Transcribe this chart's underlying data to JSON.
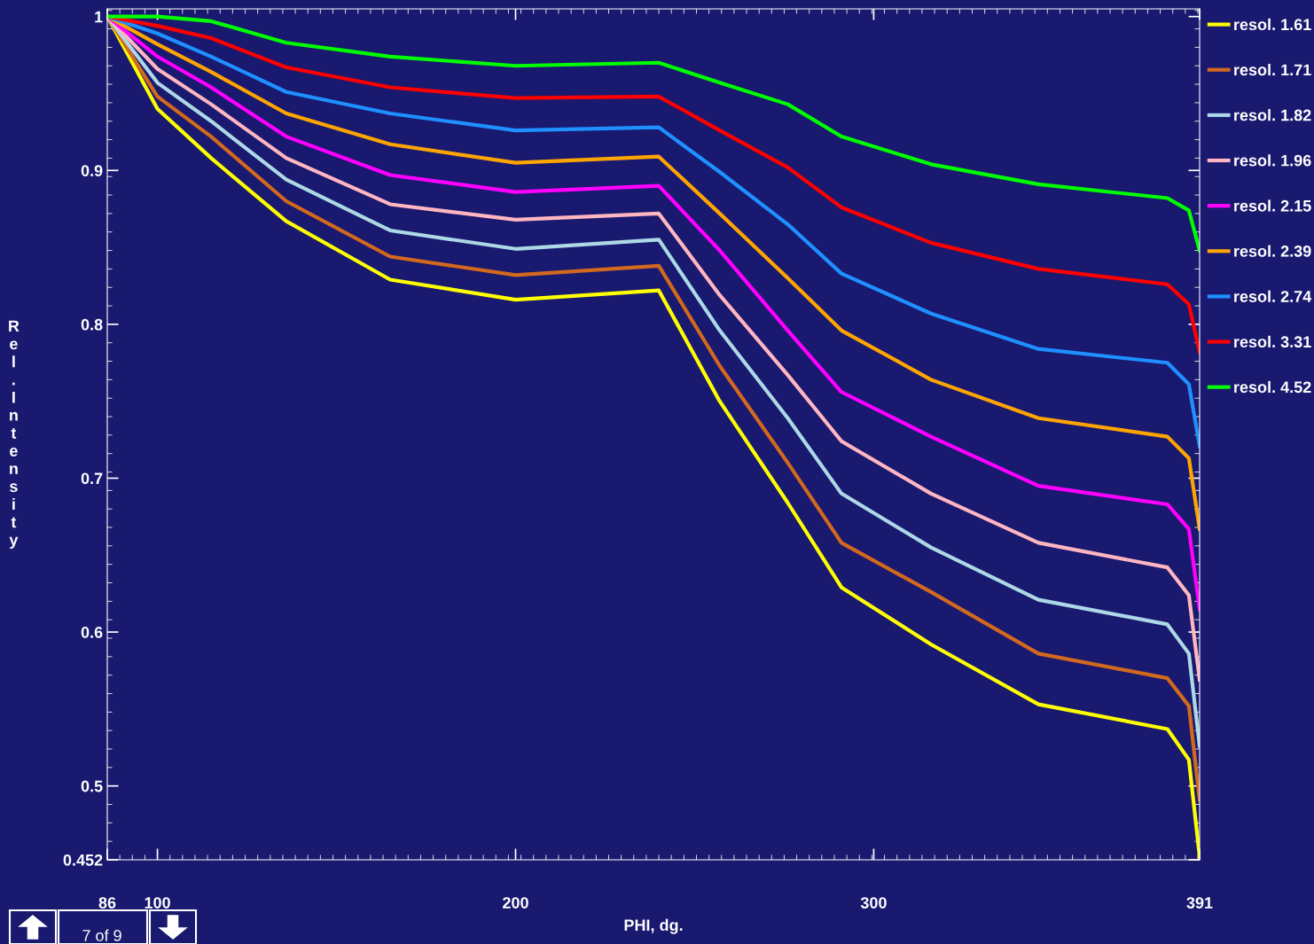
{
  "chart_data": {
    "type": "line",
    "xlabel": "PHI, dg.",
    "ylabel": "Rel.Intensity",
    "x": [
      86,
      100,
      115,
      136,
      165,
      200,
      240,
      257,
      276,
      291,
      316,
      346,
      382,
      388,
      391
    ],
    "series": [
      {
        "name": "resol. 1.61",
        "color": "#ffff00",
        "values": [
          1.0,
          0.94,
          0.908,
          0.867,
          0.829,
          0.816,
          0.822,
          0.75,
          0.684,
          0.629,
          0.592,
          0.553,
          0.537,
          0.517,
          0.454
        ]
      },
      {
        "name": "resol. 1.71",
        "color": "#d2691e",
        "values": [
          1.0,
          0.948,
          0.922,
          0.88,
          0.844,
          0.832,
          0.838,
          0.773,
          0.71,
          0.658,
          0.626,
          0.586,
          0.57,
          0.552,
          0.491
        ]
      },
      {
        "name": "resol. 1.82",
        "color": "#add8e6",
        "values": [
          1.0,
          0.957,
          0.932,
          0.894,
          0.861,
          0.849,
          0.855,
          0.796,
          0.739,
          0.69,
          0.655,
          0.621,
          0.605,
          0.586,
          0.526
        ]
      },
      {
        "name": "resol. 1.96",
        "color": "#ffb6c1",
        "values": [
          1.0,
          0.966,
          0.943,
          0.908,
          0.878,
          0.868,
          0.872,
          0.819,
          0.767,
          0.724,
          0.69,
          0.658,
          0.642,
          0.624,
          0.569
        ]
      },
      {
        "name": "resol. 2.15",
        "color": "#ff00ff",
        "values": [
          1.0,
          0.974,
          0.954,
          0.922,
          0.897,
          0.886,
          0.89,
          0.848,
          0.796,
          0.756,
          0.727,
          0.695,
          0.683,
          0.667,
          0.615
        ]
      },
      {
        "name": "resol. 2.39",
        "color": "#ffa500",
        "values": [
          1.0,
          0.982,
          0.964,
          0.937,
          0.917,
          0.905,
          0.909,
          0.872,
          0.83,
          0.796,
          0.764,
          0.739,
          0.727,
          0.713,
          0.667
        ]
      },
      {
        "name": "resol. 2.74",
        "color": "#1e90ff",
        "values": [
          1.0,
          0.989,
          0.974,
          0.951,
          0.937,
          0.926,
          0.928,
          0.899,
          0.865,
          0.833,
          0.807,
          0.784,
          0.775,
          0.761,
          0.721
        ]
      },
      {
        "name": "resol. 3.31",
        "color": "#ff0000",
        "values": [
          1.0,
          0.994,
          0.986,
          0.967,
          0.954,
          0.947,
          0.948,
          0.926,
          0.902,
          0.876,
          0.853,
          0.836,
          0.826,
          0.813,
          0.782
        ]
      },
      {
        "name": "resol. 4.52",
        "color": "#00ff00",
        "values": [
          1.0,
          1.0,
          0.997,
          0.983,
          0.974,
          0.968,
          0.97,
          0.957,
          0.943,
          0.922,
          0.904,
          0.891,
          0.882,
          0.874,
          0.848
        ]
      }
    ],
    "xlim": [
      86,
      391
    ],
    "xticks": [
      86,
      100,
      200,
      300,
      391
    ],
    "ylim": [
      0.452,
      1.005
    ],
    "yticks": [
      0.452,
      0.5,
      0.6,
      0.7,
      0.8,
      0.9,
      1
    ],
    "grid": false,
    "legend": "right",
    "marker": "none",
    "line_style": "solid",
    "annotations": [
      "7 of 9"
    ]
  }
}
